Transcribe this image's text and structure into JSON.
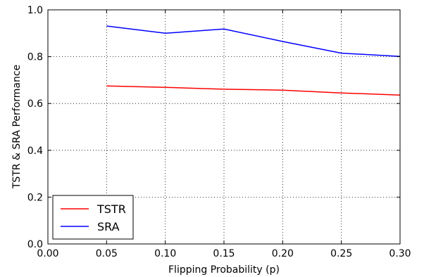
{
  "chart_data": {
    "type": "line",
    "title": "",
    "xlabel": "Flipping Probability (p)",
    "ylabel": "TSTR & SRA Performance",
    "xlim": [
      0.0,
      0.3
    ],
    "ylim": [
      0.0,
      1.0
    ],
    "x_ticks": [
      "0.00",
      "0.05",
      "0.10",
      "0.15",
      "0.20",
      "0.25",
      "0.30"
    ],
    "y_ticks": [
      "0.0",
      "0.2",
      "0.4",
      "0.6",
      "0.8",
      "1.0"
    ],
    "grid": "dotted",
    "legend_position": "lower-left",
    "x": [
      0.05,
      0.1,
      0.15,
      0.2,
      0.25,
      0.3
    ],
    "series": [
      {
        "name": "TSTR",
        "color": "#ff0000",
        "values": [
          0.675,
          0.669,
          0.661,
          0.657,
          0.645,
          0.636
        ]
      },
      {
        "name": "SRA",
        "color": "#0000ff",
        "values": [
          0.931,
          0.9,
          0.918,
          0.865,
          0.815,
          0.801
        ]
      }
    ]
  }
}
